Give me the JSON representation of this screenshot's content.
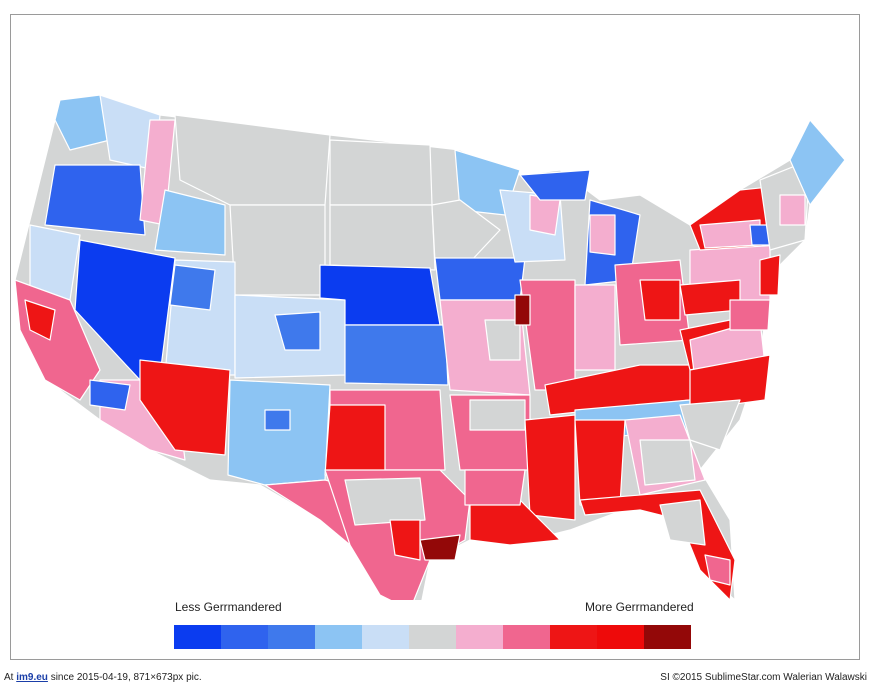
{
  "legend": {
    "left_label": "Less Gerrmandered",
    "right_label": "More Gerrmandered",
    "scale_colors": [
      "#0b3cf0",
      "#2f63ee",
      "#3f79ec",
      "#8cc4f3",
      "#c9def6",
      "#d3d5d5",
      "#f4aecf",
      "#f0668f",
      "#ee1515",
      "#ee0a0a",
      "#930808"
    ]
  },
  "footer": {
    "prefix": "At",
    "site": "im9.eu",
    "info": "since 2015-04-19, 871×673px pic.",
    "credit": "SI ©2015 SublimeStar.com Walerian Walawski"
  }
}
